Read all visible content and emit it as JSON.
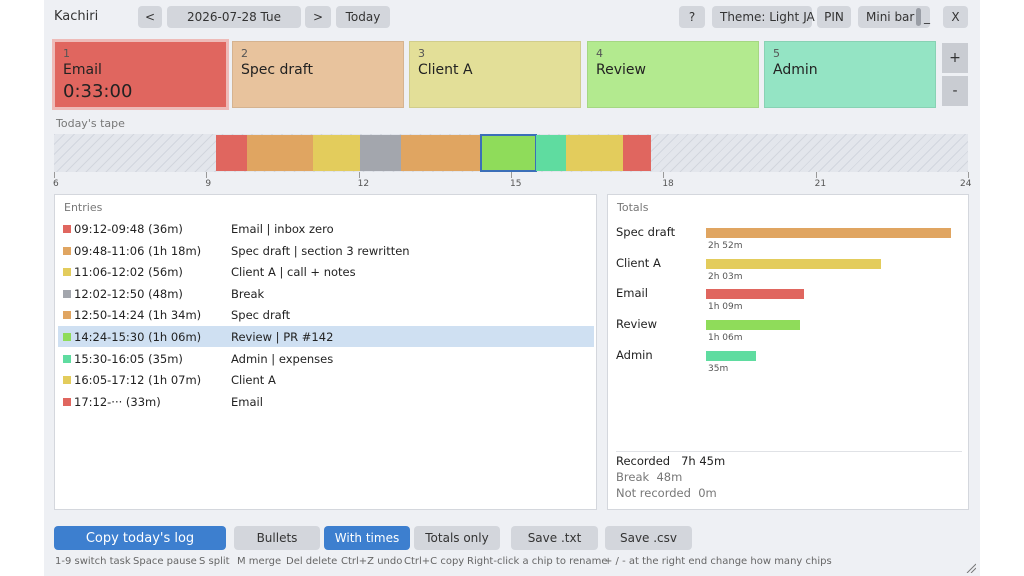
{
  "app": {
    "title": "Kachiri"
  },
  "toolbar": {
    "prev": "<",
    "date": "2026-07-28 Tue",
    "next": ">",
    "today": "Today",
    "help": "?",
    "theme": "Theme: Light",
    "lang": "JA",
    "pin": "PIN",
    "minibar": "Mini bar",
    "minimize": "_",
    "close": "X"
  },
  "chips": [
    {
      "num": "1",
      "name": "Email",
      "timer": "0:33:00",
      "color": "#e0665f",
      "active": true
    },
    {
      "num": "2",
      "name": "Spec draft",
      "color": "#e8c39d"
    },
    {
      "num": "3",
      "name": "Client A",
      "color": "#e3df98"
    },
    {
      "num": "4",
      "name": "Review",
      "color": "#b3ea8f"
    },
    {
      "num": "5",
      "name": "Admin",
      "color": "#94e4c4"
    }
  ],
  "chip_controls": {
    "add": "+",
    "remove": "-"
  },
  "tape": {
    "label": "Today's tape",
    "start_hour": 6,
    "end_hour": 24,
    "tick_labels": [
      "6",
      "9",
      "12",
      "15",
      "18",
      "21",
      "24"
    ],
    "segments": [
      {
        "start": "09:12",
        "end": "09:48",
        "color": "#e0665f"
      },
      {
        "start": "09:48",
        "end": "11:06",
        "color": "#e0a561"
      },
      {
        "start": "11:06",
        "end": "12:02",
        "color": "#e3cc5c"
      },
      {
        "start": "12:02",
        "end": "12:50",
        "color": "#a3a6ad"
      },
      {
        "start": "12:50",
        "end": "14:24",
        "color": "#e0a561"
      },
      {
        "start": "14:24",
        "end": "15:30",
        "color": "#8fdc5a",
        "selected": true
      },
      {
        "start": "15:30",
        "end": "16:05",
        "color": "#5fdca0"
      },
      {
        "start": "16:05",
        "end": "17:12",
        "color": "#e3cc5c"
      },
      {
        "start": "17:12",
        "end": "17:45",
        "color": "#e0665f"
      }
    ]
  },
  "entries": {
    "title": "Entries",
    "rows": [
      {
        "time": "09:12-09:48 (36m)",
        "task": "Email  |  inbox zero",
        "color": "#e0665f"
      },
      {
        "time": "09:48-11:06 (1h 18m)",
        "task": "Spec draft  |  section 3 rewritten",
        "color": "#e0a561"
      },
      {
        "time": "11:06-12:02 (56m)",
        "task": "Client A  |  call + notes",
        "color": "#e3cc5c"
      },
      {
        "time": "12:02-12:50 (48m)",
        "task": "Break",
        "color": "#a3a6ad"
      },
      {
        "time": "12:50-14:24 (1h 34m)",
        "task": "Spec draft",
        "color": "#e0a561"
      },
      {
        "time": "14:24-15:30 (1h 06m)",
        "task": "Review  |  PR #142",
        "color": "#8fdc5a",
        "selected": true
      },
      {
        "time": "15:30-16:05 (35m)",
        "task": "Admin  |  expenses",
        "color": "#5fdca0"
      },
      {
        "time": "16:05-17:12 (1h 07m)",
        "task": "Client A",
        "color": "#e3cc5c"
      },
      {
        "time": "17:12-··· (33m)",
        "task": "Email",
        "color": "#e0665f"
      }
    ]
  },
  "totals": {
    "title": "Totals",
    "max_minutes": 172,
    "items": [
      {
        "name": "Spec draft",
        "duration": "2h 52m",
        "minutes": 172,
        "color": "#e0a561"
      },
      {
        "name": "Client A",
        "duration": "2h 03m",
        "minutes": 123,
        "color": "#e3cc5c"
      },
      {
        "name": "Email",
        "duration": "1h 09m",
        "minutes": 69,
        "color": "#e0665f"
      },
      {
        "name": "Review",
        "duration": "1h 06m",
        "minutes": 66,
        "color": "#8fdc5a"
      },
      {
        "name": "Admin",
        "duration": "35m",
        "minutes": 35,
        "color": "#5fdca0"
      }
    ],
    "recorded_label": "Recorded",
    "recorded": "7h 45m",
    "break_label": "Break",
    "break": "48m",
    "not_recorded_label": "Not recorded",
    "not_recorded": "0m"
  },
  "bottom": {
    "copy": "Copy today's log",
    "bullets": "Bullets",
    "with_times": "With times",
    "totals_only": "Totals only",
    "save_txt": "Save .txt",
    "save_csv": "Save .csv"
  },
  "hints": [
    "1-9 switch task",
    "Space pause",
    "S split",
    "M merge",
    "Del delete",
    "Ctrl+Z undo",
    "Ctrl+C copy",
    "Right-click a chip to rename",
    "+ / - at the right end change how many chips"
  ]
}
